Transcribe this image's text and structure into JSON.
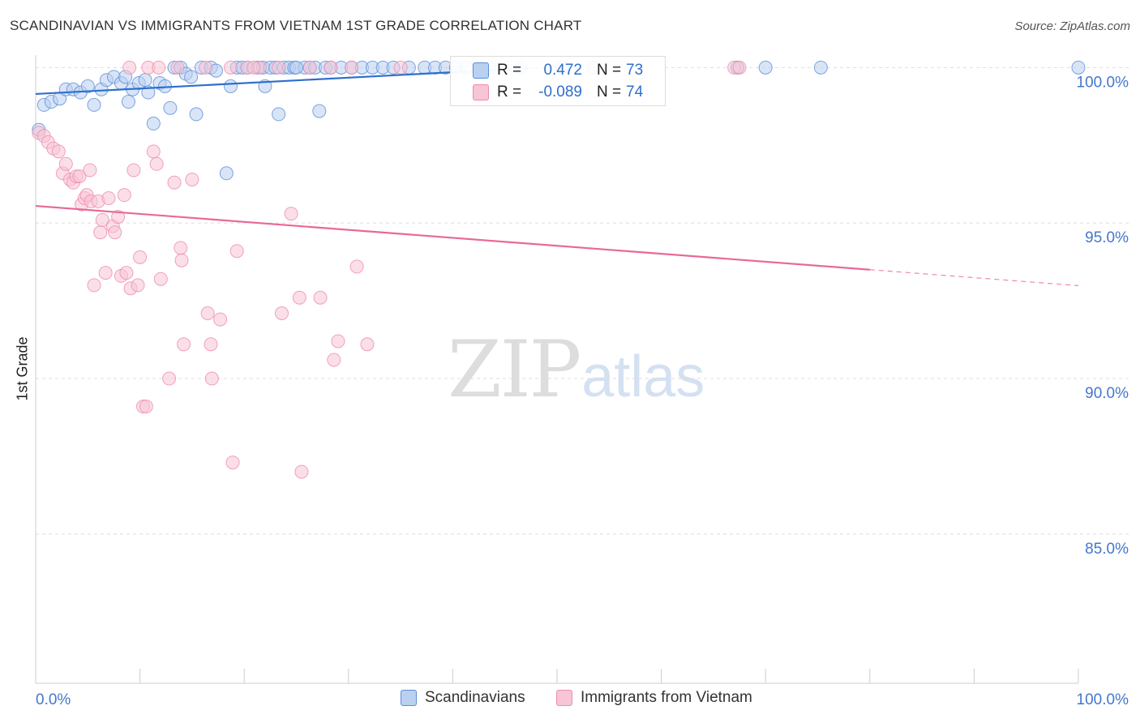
{
  "title": "SCANDINAVIAN VS IMMIGRANTS FROM VIETNAM 1ST GRADE CORRELATION CHART",
  "source": "Source: ZipAtlas.com",
  "watermark": {
    "part1": "ZIP",
    "part2": "atlas"
  },
  "colors": {
    "blue": "#5b8fd8",
    "blue_fill": "#b9d0f0",
    "blue_line": "#2e6fcc",
    "pink": "#ee8cab",
    "pink_fill": "#f7c5d5",
    "pink_line": "#e8689a",
    "axis_label": "#4477cc",
    "grid": "#dddddd"
  },
  "stats": [
    {
      "r_label": "R =",
      "r_value": "0.472",
      "n_label": "N =",
      "n_value": "73"
    },
    {
      "r_label": "R =",
      "r_value": "-0.089",
      "n_label": "N =",
      "n_value": "74"
    }
  ],
  "legend": [
    {
      "label": "Scandinavians"
    },
    {
      "label": "Immigrants from Vietnam"
    }
  ],
  "chart_data": {
    "type": "scatter",
    "title": "SCANDINAVIAN VS IMMIGRANTS FROM VIETNAM 1ST GRADE CORRELATION CHART",
    "xlabel": "",
    "ylabel": "1st Grade",
    "xlim": [
      0,
      100
    ],
    "ylim": [
      80.2,
      100.4
    ],
    "x_ticks": [
      "0.0%",
      "100.0%"
    ],
    "y_ticks": [
      {
        "value": 100,
        "label": "100.0%"
      },
      {
        "value": 95,
        "label": "95.0%"
      },
      {
        "value": 90,
        "label": "90.0%"
      },
      {
        "value": 85,
        "label": "85.0%"
      }
    ],
    "grid": true,
    "legend_position": "bottom",
    "series": [
      {
        "name": "Scandinavians",
        "color": "#5b8fd8",
        "trend": {
          "x0": 0,
          "y0": 99.15,
          "x1": 40,
          "y1": 99.85,
          "dashed_to": 53
        },
        "points": [
          [
            0.3,
            98.0
          ],
          [
            0.8,
            98.8
          ],
          [
            1.5,
            98.9
          ],
          [
            2.3,
            99.0
          ],
          [
            2.9,
            99.3
          ],
          [
            3.6,
            99.3
          ],
          [
            4.3,
            99.2
          ],
          [
            5.0,
            99.4
          ],
          [
            5.6,
            98.8
          ],
          [
            6.3,
            99.3
          ],
          [
            6.8,
            99.6
          ],
          [
            7.5,
            99.7
          ],
          [
            8.2,
            99.5
          ],
          [
            8.6,
            99.7
          ],
          [
            8.9,
            98.9
          ],
          [
            9.3,
            99.3
          ],
          [
            9.9,
            99.5
          ],
          [
            10.5,
            99.6
          ],
          [
            10.8,
            99.2
          ],
          [
            11.3,
            98.2
          ],
          [
            11.9,
            99.5
          ],
          [
            12.4,
            99.4
          ],
          [
            12.9,
            98.7
          ],
          [
            13.3,
            100.0
          ],
          [
            13.9,
            100.0
          ],
          [
            14.4,
            99.8
          ],
          [
            14.9,
            99.7
          ],
          [
            15.4,
            98.5
          ],
          [
            15.9,
            100.0
          ],
          [
            16.8,
            100.0
          ],
          [
            17.3,
            99.9
          ],
          [
            18.3,
            96.6
          ],
          [
            18.7,
            99.4
          ],
          [
            19.3,
            100.0
          ],
          [
            19.8,
            100.0
          ],
          [
            20.3,
            100.0
          ],
          [
            21.3,
            100.0
          ],
          [
            21.8,
            100.0
          ],
          [
            22.0,
            99.4
          ],
          [
            22.5,
            100.0
          ],
          [
            23.0,
            100.0
          ],
          [
            23.3,
            98.5
          ],
          [
            23.8,
            100.0
          ],
          [
            24.3,
            100.0
          ],
          [
            24.8,
            100.0
          ],
          [
            25.8,
            100.0
          ],
          [
            26.3,
            100.0
          ],
          [
            26.8,
            100.0
          ],
          [
            27.2,
            98.6
          ],
          [
            27.8,
            100.0
          ],
          [
            28.3,
            100.0
          ],
          [
            29.3,
            100.0
          ],
          [
            30.3,
            100.0
          ],
          [
            31.3,
            100.0
          ],
          [
            32.3,
            100.0
          ],
          [
            33.3,
            100.0
          ],
          [
            34.3,
            100.0
          ],
          [
            35.8,
            100.0
          ],
          [
            37.3,
            100.0
          ],
          [
            38.3,
            100.0
          ],
          [
            39.3,
            100.0
          ],
          [
            40.3,
            100.0
          ],
          [
            41.3,
            100.0
          ],
          [
            42.5,
            100.0
          ],
          [
            43.5,
            100.0
          ],
          [
            46.5,
            100.0
          ],
          [
            50.5,
            100.0
          ],
          [
            53.5,
            100.0
          ],
          [
            67.3,
            100.0
          ],
          [
            70.0,
            100.0
          ],
          [
            75.3,
            100.0
          ],
          [
            100.0,
            100.0
          ],
          [
            25.0,
            100.0
          ]
        ]
      },
      {
        "name": "Immigrants from Vietnam",
        "color": "#ee8cab",
        "trend": {
          "x0": 0,
          "y0": 95.55,
          "x1": 80,
          "y1": 93.5,
          "dashed_to": 100
        },
        "points": [
          [
            0.3,
            97.9
          ],
          [
            0.8,
            97.8
          ],
          [
            1.2,
            97.6
          ],
          [
            1.7,
            97.4
          ],
          [
            2.2,
            97.3
          ],
          [
            2.6,
            96.6
          ],
          [
            2.9,
            96.9
          ],
          [
            3.3,
            96.4
          ],
          [
            3.6,
            96.3
          ],
          [
            3.9,
            96.5
          ],
          [
            4.2,
            96.5
          ],
          [
            4.4,
            95.6
          ],
          [
            4.7,
            95.8
          ],
          [
            4.9,
            95.9
          ],
          [
            5.3,
            95.7
          ],
          [
            5.2,
            96.7
          ],
          [
            5.6,
            93.0
          ],
          [
            6.0,
            95.7
          ],
          [
            6.2,
            94.7
          ],
          [
            6.4,
            95.1
          ],
          [
            6.7,
            93.4
          ],
          [
            7.0,
            95.8
          ],
          [
            7.4,
            94.9
          ],
          [
            7.6,
            94.7
          ],
          [
            7.9,
            95.2
          ],
          [
            8.2,
            93.3
          ],
          [
            8.5,
            95.9
          ],
          [
            8.7,
            93.4
          ],
          [
            9.0,
            100.0
          ],
          [
            9.1,
            92.9
          ],
          [
            9.4,
            96.7
          ],
          [
            9.8,
            93.0
          ],
          [
            10.0,
            93.9
          ],
          [
            10.3,
            89.1
          ],
          [
            10.6,
            89.1
          ],
          [
            10.8,
            100.0
          ],
          [
            11.3,
            97.3
          ],
          [
            11.6,
            96.9
          ],
          [
            11.8,
            100.0
          ],
          [
            12.0,
            93.2
          ],
          [
            12.8,
            90.0
          ],
          [
            13.3,
            96.3
          ],
          [
            13.6,
            100.0
          ],
          [
            13.9,
            94.2
          ],
          [
            14.0,
            93.8
          ],
          [
            14.2,
            91.1
          ],
          [
            15.0,
            96.4
          ],
          [
            16.3,
            100.0
          ],
          [
            16.5,
            92.1
          ],
          [
            16.8,
            91.1
          ],
          [
            16.9,
            90.0
          ],
          [
            17.7,
            91.9
          ],
          [
            18.7,
            100.0
          ],
          [
            18.9,
            87.3
          ],
          [
            19.3,
            94.1
          ],
          [
            20.3,
            100.0
          ],
          [
            21.5,
            100.0
          ],
          [
            23.3,
            100.0
          ],
          [
            23.6,
            92.1
          ],
          [
            24.5,
            95.3
          ],
          [
            25.3,
            92.6
          ],
          [
            25.5,
            87.0
          ],
          [
            26.3,
            100.0
          ],
          [
            27.3,
            92.6
          ],
          [
            28.3,
            100.0
          ],
          [
            28.6,
            90.6
          ],
          [
            29.0,
            91.2
          ],
          [
            30.3,
            100.0
          ],
          [
            30.8,
            93.6
          ],
          [
            31.8,
            91.1
          ],
          [
            35.0,
            100.0
          ],
          [
            67.0,
            100.0
          ],
          [
            67.5,
            100.0
          ],
          [
            20.9,
            100.0
          ]
        ]
      }
    ]
  }
}
